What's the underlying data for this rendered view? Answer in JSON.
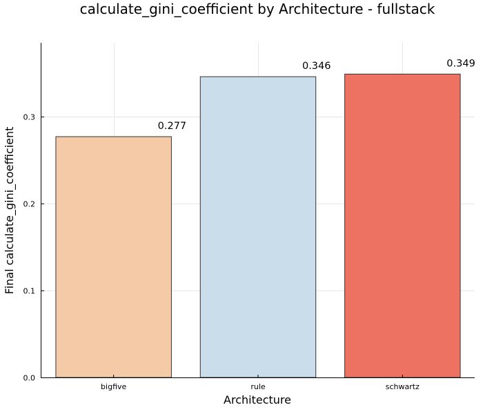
{
  "chart_data": {
    "type": "bar",
    "title": "calculate_gini_coefficient by Architecture - fullstack",
    "xlabel": "Architecture",
    "ylabel": "Final calculate_gini_coefficient",
    "categories": [
      "bigfive",
      "rule",
      "schwartz"
    ],
    "values": [
      0.277,
      0.346,
      0.349
    ],
    "value_labels": [
      "0.277",
      "0.346",
      "0.349"
    ],
    "colors": [
      "#F5CAA6",
      "#C9DDEB",
      "#EE7262"
    ],
    "ylim": [
      0,
      0.385
    ],
    "yticks": [
      0.0,
      0.1,
      0.2,
      0.3
    ],
    "ytick_labels": [
      "0.0",
      "0.1",
      "0.2",
      "0.3"
    ],
    "grid": true,
    "legend": "none"
  }
}
